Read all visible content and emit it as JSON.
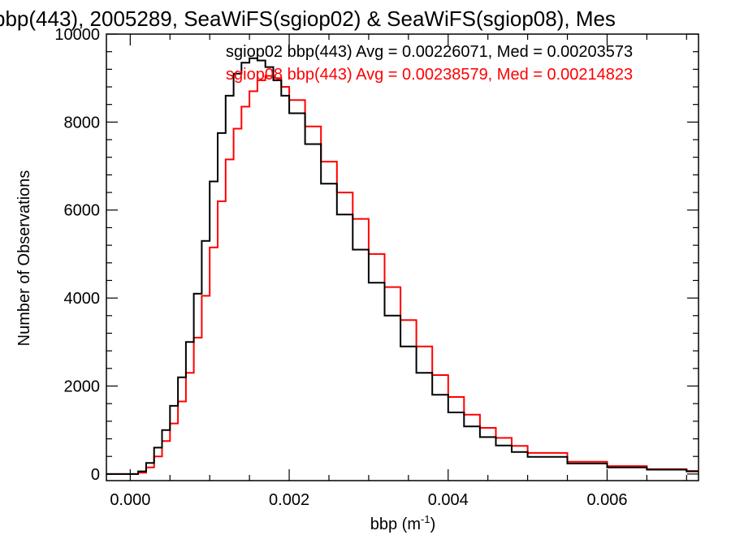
{
  "chart_data": {
    "type": "line",
    "step": true,
    "title": "bbp(443), 2005289, SeaWiFS(sgiop02) & SeaWiFS(sgiop08), Mes",
    "xlabel_main": "bbp (m",
    "xlabel_sup": "-1",
    "xlabel_end": ")",
    "ylabel": "Number of Observations",
    "xlim": [
      -0.0003,
      0.00715
    ],
    "ylim": [
      -150,
      10000
    ],
    "x_ticks": [
      0.0,
      0.002,
      0.004,
      0.006
    ],
    "x_tick_labels": [
      "0.000",
      "0.002",
      "0.004",
      "0.006"
    ],
    "y_ticks": [
      0,
      2000,
      4000,
      6000,
      8000,
      10000
    ],
    "y_tick_labels": [
      "0",
      "2000",
      "4000",
      "6000",
      "8000",
      "10000"
    ],
    "grid": false,
    "legend_position": "top-right",
    "series": [
      {
        "name": "sgiop02",
        "legend": "sgiop02 bbp(443) Avg = 0.00226071, Med = 0.00203573",
        "color": "#000000",
        "x": [
          -0.0003,
          -0.0001,
          0.0001,
          0.0002,
          0.0003,
          0.0004,
          0.0005,
          0.0006,
          0.0007,
          0.0008,
          0.0009,
          0.001,
          0.0011,
          0.0012,
          0.0013,
          0.0014,
          0.0015,
          0.0016,
          0.0017,
          0.0018,
          0.0019,
          0.002,
          0.0022,
          0.0024,
          0.0026,
          0.0028,
          0.003,
          0.0032,
          0.0034,
          0.0036,
          0.0038,
          0.004,
          0.0042,
          0.0044,
          0.0046,
          0.0048,
          0.005,
          0.0055,
          0.006,
          0.0065,
          0.007,
          0.00715
        ],
        "y": [
          0,
          0,
          60,
          250,
          600,
          1000,
          1550,
          2200,
          3000,
          4100,
          5300,
          6650,
          7750,
          8600,
          9100,
          9350,
          9450,
          9400,
          9250,
          8950,
          8600,
          8200,
          7500,
          6600,
          5900,
          5100,
          4350,
          3600,
          2900,
          2300,
          1800,
          1400,
          1080,
          840,
          650,
          500,
          390,
          240,
          150,
          100,
          60,
          50
        ]
      },
      {
        "name": "sgiop08",
        "legend": "sgiop08 bbp(443) Avg = 0.00238579, Med = 0.00214823",
        "color": "#ff0000",
        "x": [
          -0.0003,
          -0.0001,
          0.0001,
          0.0002,
          0.0003,
          0.0004,
          0.0005,
          0.0006,
          0.0007,
          0.0008,
          0.0009,
          0.001,
          0.0011,
          0.0012,
          0.0013,
          0.0014,
          0.0015,
          0.0016,
          0.0017,
          0.0018,
          0.0019,
          0.002,
          0.0022,
          0.0024,
          0.0026,
          0.0028,
          0.003,
          0.0032,
          0.0034,
          0.0036,
          0.0038,
          0.004,
          0.0042,
          0.0044,
          0.0046,
          0.0048,
          0.005,
          0.0055,
          0.006,
          0.0065,
          0.007,
          0.00715
        ],
        "y": [
          0,
          0,
          30,
          150,
          400,
          750,
          1150,
          1650,
          2300,
          3100,
          4050,
          5150,
          6200,
          7150,
          7850,
          8350,
          8700,
          8950,
          9050,
          9000,
          8800,
          8500,
          7900,
          7100,
          6400,
          5800,
          5000,
          4250,
          3500,
          2900,
          2250,
          1750,
          1350,
          1050,
          820,
          640,
          480,
          280,
          180,
          110,
          70,
          50
        ]
      }
    ]
  }
}
